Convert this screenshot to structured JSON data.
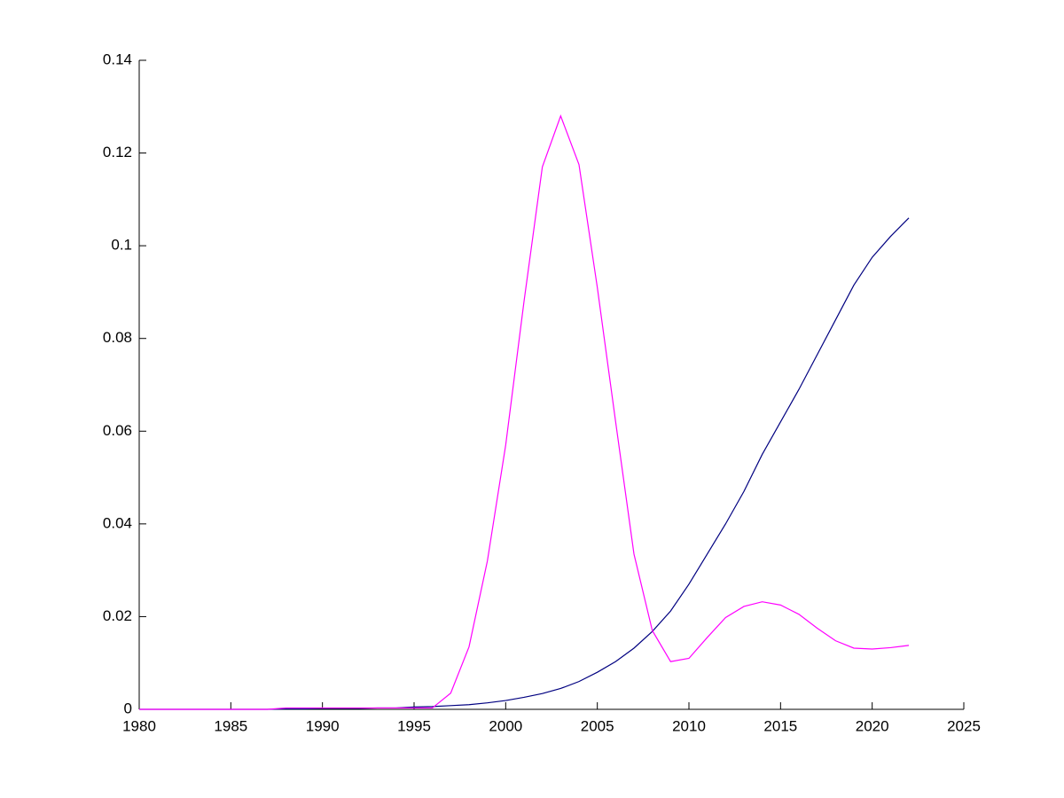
{
  "chart_data": {
    "type": "line",
    "x": [
      1980,
      1981,
      1982,
      1983,
      1984,
      1985,
      1986,
      1987,
      1988,
      1989,
      1990,
      1991,
      1992,
      1993,
      1994,
      1995,
      1996,
      1997,
      1998,
      1999,
      2000,
      2001,
      2002,
      2003,
      2004,
      2005,
      2006,
      2007,
      2008,
      2009,
      2010,
      2011,
      2012,
      2013,
      2014,
      2015,
      2016,
      2017,
      2018,
      2019,
      2020,
      2021,
      2022
    ],
    "series": [
      {
        "color": "#000080",
        "values": [
          0,
          0,
          0,
          0,
          0,
          0,
          0,
          0,
          0.0001,
          0.0001,
          0.0002,
          0.0002,
          0.0002,
          0.0003,
          0.0003,
          0.0005,
          0.0006,
          0.0008,
          0.001,
          0.0014,
          0.0019,
          0.0026,
          0.0034,
          0.0045,
          0.006,
          0.008,
          0.0103,
          0.0132,
          0.0168,
          0.0212,
          0.027,
          0.0335,
          0.04,
          0.047,
          0.055,
          0.062,
          0.069,
          0.0765,
          0.084,
          0.0915,
          0.0975,
          0.102,
          0.106
        ]
      },
      {
        "color": "#ff00ff",
        "values": [
          0,
          0,
          0,
          0,
          0,
          0,
          0,
          0,
          0.0003,
          0.0003,
          0.0003,
          0.0003,
          0.0003,
          0.0003,
          0.0003,
          0.0003,
          0.0003,
          0.0035,
          0.0135,
          0.032,
          0.057,
          0.088,
          0.117,
          0.128,
          0.1175,
          0.091,
          0.062,
          0.0335,
          0.017,
          0.0103,
          0.011,
          0.0155,
          0.0198,
          0.0222,
          0.0232,
          0.0225,
          0.0205,
          0.0175,
          0.0148,
          0.0132,
          0.013,
          0.0133,
          0.0138
        ]
      }
    ],
    "xlim": [
      1980,
      2025
    ],
    "xticks": [
      1980,
      1985,
      1990,
      1995,
      2000,
      2005,
      2010,
      2015,
      2020,
      2025
    ],
    "ylim": [
      0,
      0.14
    ],
    "yticks": [
      0,
      0.02,
      0.04,
      0.06,
      0.08,
      0.1,
      0.12,
      0.14
    ],
    "grid": false
  }
}
